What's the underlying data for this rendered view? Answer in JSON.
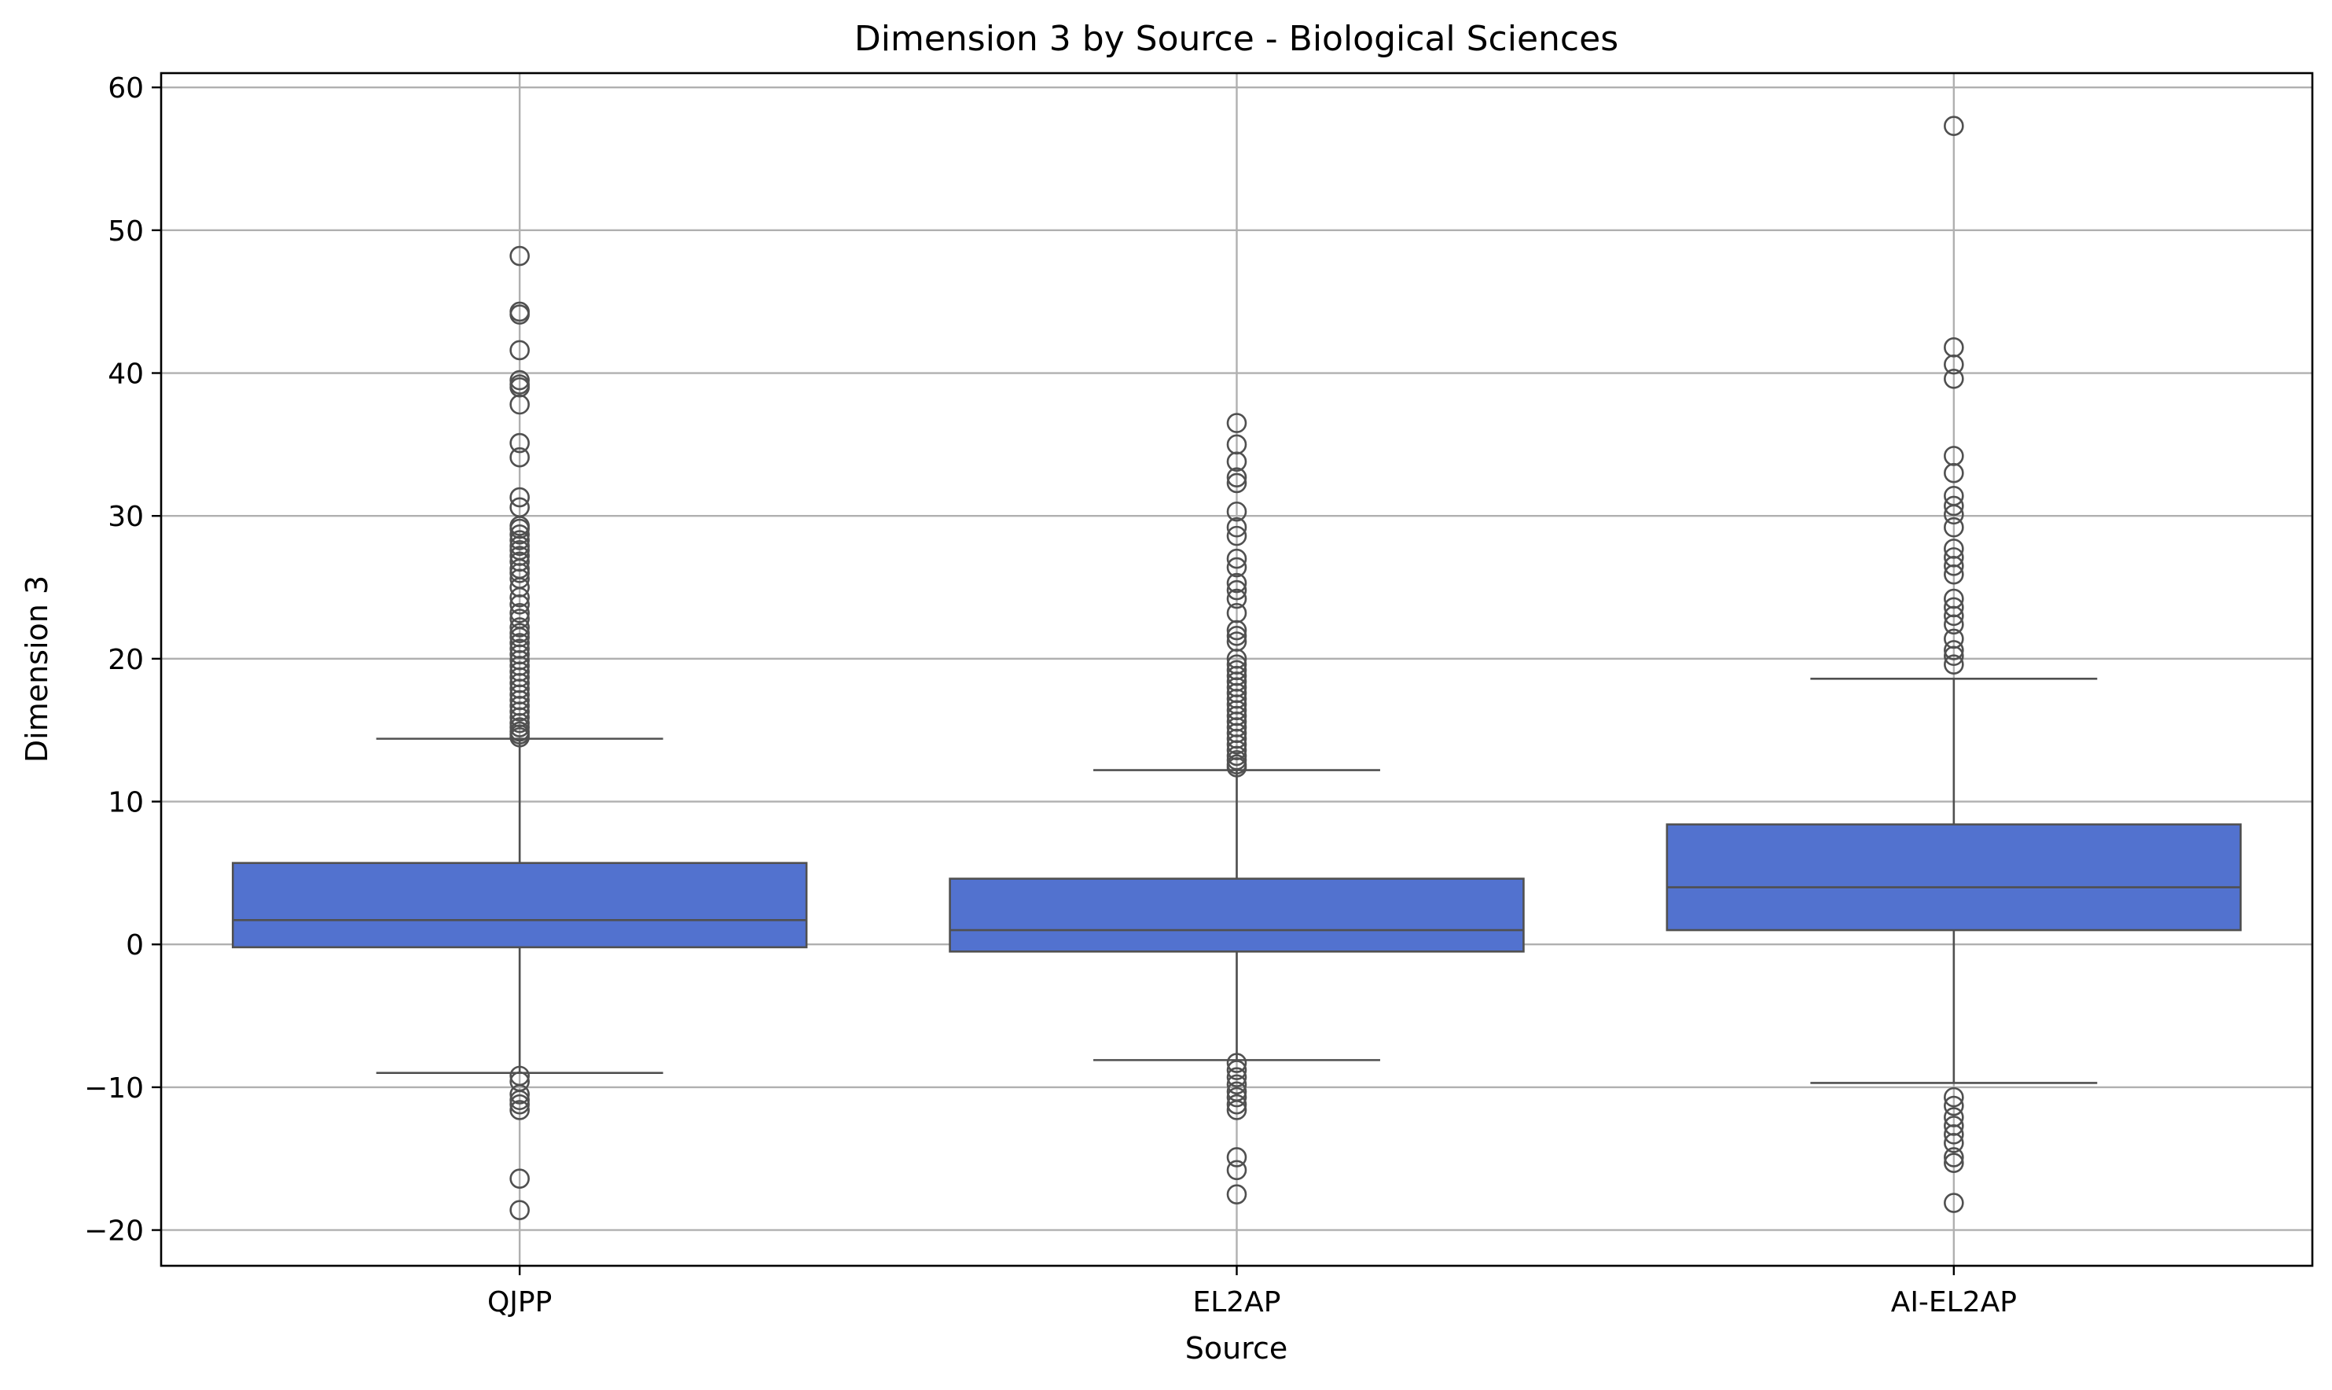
{
  "chart_data": {
    "type": "box",
    "title": "Dimension 3 by Source - Biological Sciences",
    "xlabel": "Source",
    "ylabel": "Dimension 3",
    "categories": [
      "QJPP",
      "EL2AP",
      "AI-EL2AP"
    ],
    "ylim": [
      -22.5,
      61
    ],
    "yticks": [
      60,
      50,
      40,
      30,
      20,
      10,
      0,
      -10,
      -20
    ],
    "ytick_labels": [
      "60",
      "50",
      "40",
      "30",
      "20",
      "10",
      "0",
      "−10",
      "−20"
    ],
    "grid": true,
    "box_color": "#5272cf",
    "line_color": "#505050",
    "boxes": [
      {
        "category": "QJPP",
        "q1": -0.2,
        "median": 1.7,
        "q3": 5.7,
        "whisker_low": -9.0,
        "whisker_high": 14.4,
        "outliers": [
          48.2,
          44.3,
          44.1,
          41.6,
          39.5,
          39.2,
          39.0,
          37.8,
          35.1,
          34.1,
          31.3,
          30.6,
          29.3,
          29.1,
          28.7,
          28.3,
          27.9,
          27.6,
          27.2,
          26.8,
          26.3,
          26.0,
          25.6,
          25.0,
          24.3,
          23.8,
          23.2,
          22.8,
          22.2,
          21.8,
          21.5,
          21.1,
          20.7,
          20.3,
          19.9,
          19.5,
          19.1,
          18.7,
          18.3,
          17.9,
          17.5,
          17.1,
          16.7,
          16.3,
          15.9,
          15.5,
          15.2,
          14.9,
          14.7,
          14.5,
          -9.2,
          -9.6,
          -10.5,
          -10.9,
          -11.2,
          -11.6,
          -16.4,
          -18.6
        ]
      },
      {
        "category": "EL2AP",
        "q1": -0.5,
        "median": 1.0,
        "q3": 4.6,
        "whisker_low": -8.1,
        "whisker_high": 12.2,
        "outliers": [
          36.5,
          35.0,
          33.8,
          32.7,
          32.3,
          30.3,
          29.2,
          28.6,
          27.0,
          26.4,
          25.3,
          24.8,
          24.2,
          23.2,
          22.0,
          21.6,
          21.2,
          20.0,
          19.6,
          19.2,
          18.8,
          18.4,
          18.0,
          17.6,
          17.2,
          16.8,
          16.4,
          16.0,
          15.6,
          15.2,
          14.8,
          14.4,
          14.0,
          13.6,
          13.2,
          12.9,
          12.6,
          12.4,
          -8.3,
          -8.8,
          -9.3,
          -9.8,
          -10.3,
          -10.7,
          -11.2,
          -11.6,
          -14.9,
          -15.8,
          -17.5
        ]
      },
      {
        "category": "AI-EL2AP",
        "q1": 1.0,
        "median": 4.0,
        "q3": 8.4,
        "whisker_low": -9.7,
        "whisker_high": 18.6,
        "outliers": [
          57.3,
          41.8,
          40.6,
          39.6,
          34.2,
          33.0,
          31.4,
          30.7,
          30.1,
          29.2,
          27.7,
          27.1,
          26.5,
          25.9,
          24.2,
          23.6,
          23.0,
          22.4,
          21.4,
          20.6,
          20.2,
          19.6,
          -10.7,
          -11.3,
          -12.1,
          -12.7,
          -13.3,
          -13.9,
          -14.9,
          -15.3,
          -18.1
        ]
      }
    ]
  }
}
